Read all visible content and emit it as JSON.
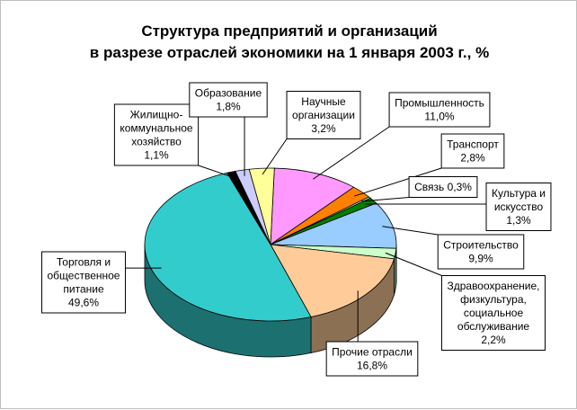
{
  "chart_data": {
    "type": "pie",
    "title_lines": [
      "Структура предприятий и организаций",
      "в разрезе отраслей экономики на 1 января 2003 г., %"
    ],
    "three_d": true,
    "slices": [
      {
        "label_lines": [
          "Промышленность",
          "11,0%"
        ],
        "value": 11.0,
        "color": "#ff99ff"
      },
      {
        "label_lines": [
          "Транспорт",
          "2,8%"
        ],
        "value": 2.8,
        "color": "#ff8000"
      },
      {
        "label_lines": [
          "Связь 0,3%"
        ],
        "value": 0.3,
        "color": "#ccffcc"
      },
      {
        "label_lines": [
          "Культура и",
          "искусство",
          "1,3%"
        ],
        "value": 1.3,
        "color": "#008000"
      },
      {
        "label_lines": [
          "Строительство",
          "9,9%"
        ],
        "value": 9.9,
        "color": "#99ccff"
      },
      {
        "label_lines": [
          "Здравоохранение,",
          "физкультура,",
          "социальное",
          "обслуживание",
          "2,2%"
        ],
        "value": 2.2,
        "color": "#ccffcc"
      },
      {
        "label_lines": [
          "Прочие отрасли",
          "16,8%"
        ],
        "value": 16.8,
        "color": "#ffcc99"
      },
      {
        "label_lines": [
          "Торговля и",
          "общественное",
          "питание",
          "49,6%"
        ],
        "value": 49.6,
        "color": "#33cccc"
      },
      {
        "label_lines": [
          "Жилищно-",
          "коммунальное",
          "хозяйство",
          "1,1%"
        ],
        "value": 1.1,
        "color": "#000000"
      },
      {
        "label_lines": [
          "Образование",
          "1,8%"
        ],
        "value": 1.8,
        "color": "#ccccff"
      },
      {
        "label_lines": [
          "Научные",
          "организации",
          "3,2%"
        ],
        "value": 3.2,
        "color": "#ffff99"
      }
    ]
  }
}
